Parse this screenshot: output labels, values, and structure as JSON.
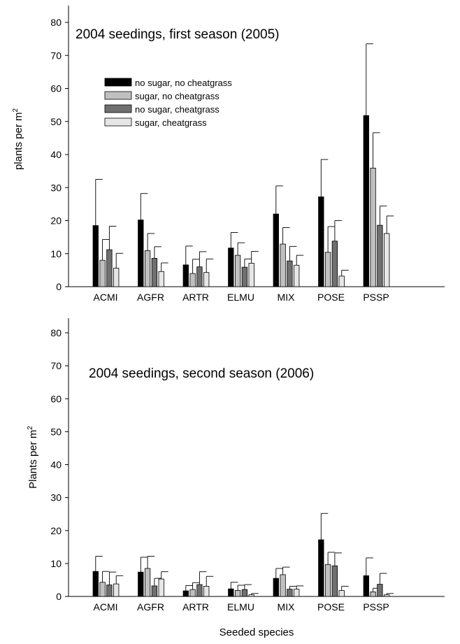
{
  "chart_data": [
    {
      "type": "bar",
      "title": "2004 seedings, first season (2005)",
      "xlabel": "",
      "ylabel": "plants per m",
      "ylabel_sup": "2",
      "ylim": [
        0,
        80
      ],
      "yticks": [
        "0",
        "10",
        "20",
        "30",
        "40",
        "50",
        "60",
        "70",
        "80"
      ],
      "categories": [
        "ACMI",
        "AGFR",
        "ARTR",
        "ELMU",
        "MIX",
        "POSE",
        "PSSP"
      ],
      "error_bars": "upper",
      "legend_position": "upper-left",
      "series": [
        {
          "name": "no sugar, no cheatgrass",
          "color": "#000000",
          "values": [
            18.5,
            20.2,
            6.6,
            11.7,
            22.0,
            27.2,
            51.8
          ],
          "errors": [
            14.0,
            8.0,
            5.7,
            4.7,
            8.5,
            11.3,
            21.7
          ]
        },
        {
          "name": "sugar, no cheatgrass",
          "color": "#c0c0c0",
          "values": [
            8.0,
            10.9,
            4.0,
            9.5,
            12.9,
            10.4,
            35.9
          ],
          "errors": [
            6.3,
            5.2,
            4.3,
            3.8,
            5.0,
            7.8,
            10.7
          ]
        },
        {
          "name": "no sugar, cheatgrass",
          "color": "#707070",
          "values": [
            11.2,
            8.6,
            6.0,
            5.9,
            7.8,
            13.8,
            18.6
          ],
          "errors": [
            7.1,
            3.5,
            4.6,
            2.5,
            4.4,
            6.2,
            5.8
          ]
        },
        {
          "name": "sugar, cheatgrass",
          "color": "#e6e6e6",
          "values": [
            5.6,
            4.6,
            4.3,
            7.1,
            6.5,
            3.2,
            16.1
          ],
          "errors": [
            4.5,
            2.6,
            4.1,
            3.6,
            3.0,
            1.8,
            5.3
          ]
        }
      ]
    },
    {
      "type": "bar",
      "title": "2004 seedings, second season (2006)",
      "xlabel": "Seeded species",
      "ylabel": "Plants per m",
      "ylabel_sup": "2",
      "ylim": [
        0,
        80
      ],
      "yticks": [
        "0",
        "10",
        "20",
        "30",
        "40",
        "50",
        "60",
        "70",
        "80"
      ],
      "categories": [
        "ACMI",
        "AGFR",
        "ARTR",
        "ELMU",
        "MIX",
        "POSE",
        "PSSP"
      ],
      "error_bars": "upper",
      "series": [
        {
          "name": "no sugar, no cheatgrass",
          "color": "#000000",
          "values": [
            7.6,
            7.4,
            1.7,
            2.3,
            5.5,
            17.2,
            6.3
          ],
          "errors": [
            4.6,
            4.5,
            1.6,
            2.0,
            3.0,
            8.0,
            5.4
          ]
        },
        {
          "name": "sugar, no cheatgrass",
          "color": "#c0c0c0",
          "values": [
            4.3,
            8.5,
            2.1,
            1.8,
            6.6,
            9.7,
            1.4
          ],
          "errors": [
            3.3,
            3.7,
            2.1,
            1.6,
            2.3,
            3.7,
            1.1
          ]
        },
        {
          "name": "no sugar, cheatgrass",
          "color": "#707070",
          "values": [
            3.5,
            3.2,
            3.6,
            2.1,
            2.2,
            9.3,
            3.7
          ],
          "errors": [
            3.9,
            2.3,
            3.9,
            1.5,
            0.9,
            3.9,
            3.3
          ]
        },
        {
          "name": "sugar, cheatgrass",
          "color": "#e6e6e6",
          "values": [
            3.8,
            5.3,
            3.1,
            0.5,
            2.2,
            1.8,
            0.5
          ],
          "errors": [
            2.5,
            2.2,
            3.0,
            0.4,
            1.0,
            1.3,
            0.4
          ]
        }
      ]
    }
  ]
}
